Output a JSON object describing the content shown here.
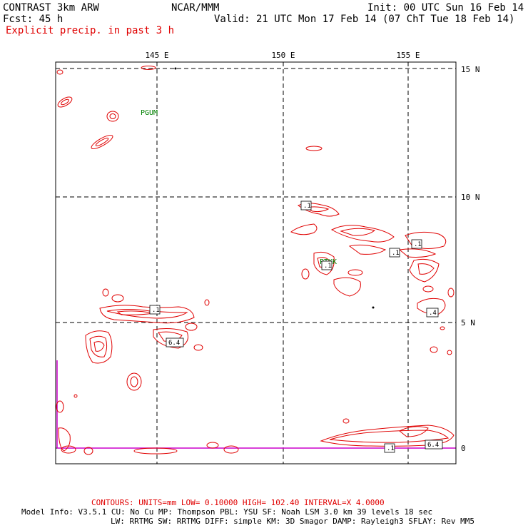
{
  "header": {
    "model": "CONTRAST  3km ARW",
    "org": "NCAR/MMM",
    "init": "Init: 00 UTC Sun 16 Feb 14",
    "fcst": "Fcst:   45 h",
    "valid": "Valid: 21 UTC Mon 17 Feb 14 (07 ChT Tue 18 Feb 14)",
    "field": "Explicit precip. in past 3 h"
  },
  "axes": {
    "lon_labels": [
      "145 E",
      "150 E",
      "155 E"
    ],
    "lat_labels": [
      "15 N",
      "10 N",
      "5 N",
      "0"
    ]
  },
  "stations": [
    "PGUM",
    "PTKK"
  ],
  "contour_labels": [
    ".1",
    ".1",
    ".1",
    ".1",
    ".4",
    ".1",
    "6.4",
    ".1",
    "6.4"
  ],
  "footer": {
    "contours": "CONTOURS:  UNITS=mm  LOW= 0.10000     HIGH=  102.40      INTERVAL=X  4.0000",
    "line1": "Model Info: V3.5.1    CU: No Cu     MP: Thompson    PBL: YSU      SF: Noah LSM     3.0 km   39 levels   18 sec",
    "line2": "LW: RRTMG    SW: RRTMG  DIFF: simple KM: 3D Smagor DAMP: Rayleigh3  SFLAY: Rev MM5"
  },
  "colors": {
    "contour": "#e00000",
    "station": "#008000",
    "boundary": "#cc00cc"
  }
}
